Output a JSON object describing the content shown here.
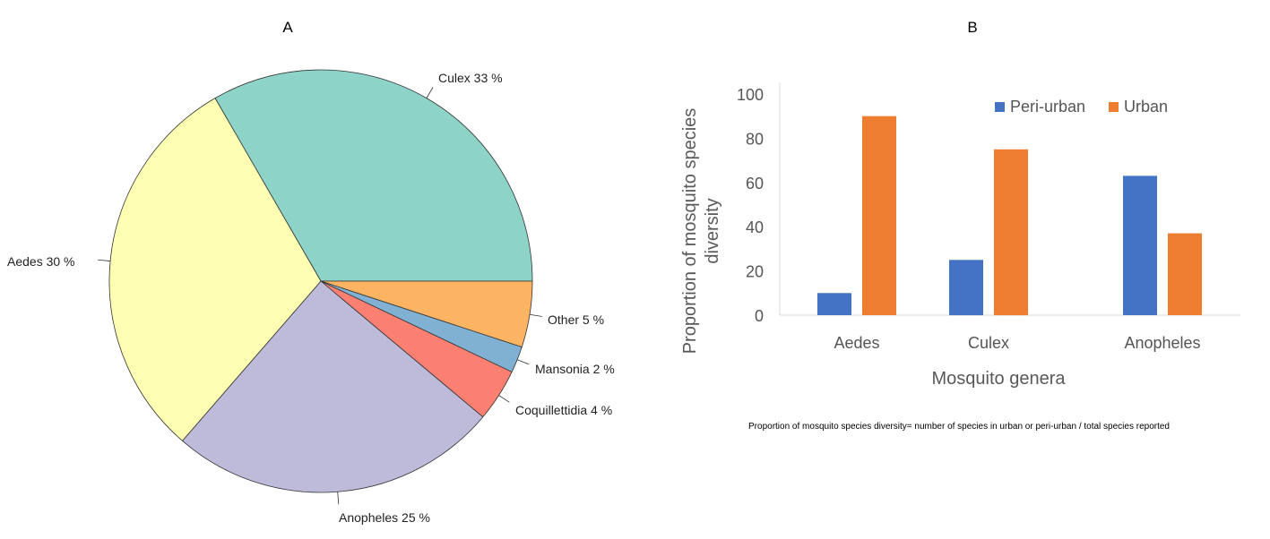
{
  "chart_data": [
    {
      "panel": "A",
      "type": "pie",
      "slices": [
        {
          "label": "Culex 33 %",
          "value": 33,
          "color": "#8dd3c7"
        },
        {
          "label": "Other 5 %",
          "value": 5,
          "color": "#fdb462"
        },
        {
          "label": "Mansonia 2 %",
          "value": 2,
          "color": "#80b1d3"
        },
        {
          "label": "Coquillettidia 4 %",
          "value": 4,
          "color": "#fb8072"
        },
        {
          "label": "Anopheles 25 %",
          "value": 25,
          "color": "#bebada"
        },
        {
          "label": "Aedes 30 %",
          "value": 30,
          "color": "#ffffb3"
        }
      ]
    },
    {
      "panel": "B",
      "type": "bar",
      "categories": [
        "Aedes",
        "Culex",
        "Anopheles"
      ],
      "series": [
        {
          "name": "Peri-urban",
          "values": [
            10,
            25,
            63
          ],
          "color": "#4472c4"
        },
        {
          "name": "Urban",
          "values": [
            90,
            75,
            37
          ],
          "color": "#ed7d31"
        }
      ],
      "ylim": [
        0,
        100
      ],
      "yticks": [
        "0",
        "20",
        "40",
        "60",
        "80",
        "100"
      ],
      "xlabel": "Mosquito genera",
      "ylabel": "Proportion of mosquito species diversity",
      "legend_position": "top-right",
      "grid": false
    }
  ],
  "footnote": "Proportion of mosquito species diversity= number of species in urban or peri-urban / total species reported"
}
